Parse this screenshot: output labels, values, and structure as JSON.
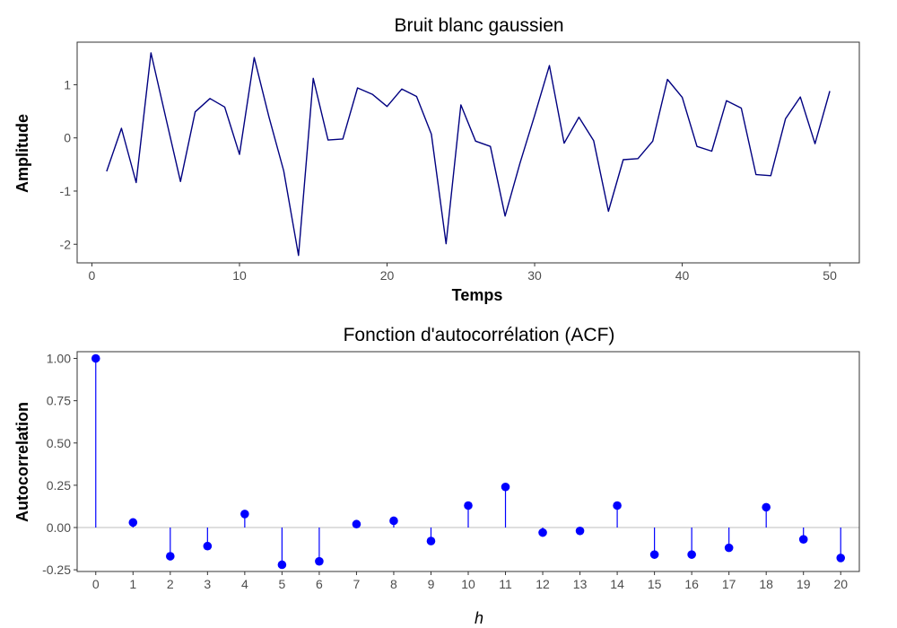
{
  "chart_data": [
    {
      "type": "line",
      "title": "Bruit blanc gaussien",
      "xlabel": "Temps",
      "ylabel": "Amplitude",
      "xlim": [
        -1,
        52
      ],
      "ylim": [
        -2.35,
        1.8
      ],
      "xticks": [
        0,
        10,
        20,
        30,
        40,
        50
      ],
      "xtick_labels": [
        "0",
        "10",
        "20",
        "30",
        "40",
        "50"
      ],
      "yticks": [
        -2,
        -1,
        0,
        1
      ],
      "ytick_labels": [
        "-2",
        "-1",
        "0",
        "1"
      ],
      "grid": false,
      "line_color": "#000080",
      "x": [
        1,
        2,
        3,
        4,
        5,
        6,
        7,
        8,
        9,
        10,
        11,
        12,
        13,
        14,
        15,
        16,
        17,
        18,
        19,
        20,
        21,
        22,
        23,
        24,
        25,
        26,
        27,
        28,
        29,
        30,
        31,
        32,
        33,
        34,
        35,
        36,
        37,
        38,
        39,
        40,
        41,
        42,
        43,
        44,
        45,
        46,
        47,
        48,
        49,
        50
      ],
      "y": [
        -0.63,
        0.18,
        -0.84,
        1.6,
        0.39,
        -0.82,
        0.49,
        0.74,
        0.58,
        -0.31,
        1.51,
        0.39,
        -0.62,
        -2.21,
        1.12,
        -0.04,
        -0.02,
        0.94,
        0.82,
        0.59,
        0.92,
        0.78,
        0.07,
        -1.99,
        0.62,
        -0.06,
        -0.16,
        -1.47,
        -0.48,
        0.42,
        1.36,
        -0.1,
        0.39,
        -0.05,
        -1.38,
        -0.41,
        -0.39,
        -0.06,
        1.1,
        0.76,
        -0.16,
        -0.25,
        0.7,
        0.56,
        -0.69,
        -0.71,
        0.36,
        0.77,
        -0.11,
        0.88
      ]
    },
    {
      "type": "scatter",
      "subtype": "lollipop",
      "title": "Fonction d'autocorrélation (ACF)",
      "xlabel": "h",
      "ylabel": "Autocorrelation",
      "xlim": [
        -0.5,
        20.5
      ],
      "ylim": [
        -0.26,
        1.04
      ],
      "xticks": [
        0,
        1,
        2,
        3,
        4,
        5,
        6,
        7,
        8,
        9,
        10,
        11,
        12,
        13,
        14,
        15,
        16,
        17,
        18,
        19,
        20
      ],
      "xtick_labels": [
        "0",
        "1",
        "2",
        "3",
        "4",
        "5",
        "6",
        "7",
        "8",
        "9",
        "10",
        "11",
        "12",
        "13",
        "14",
        "15",
        "16",
        "17",
        "18",
        "19",
        "20"
      ],
      "yticks": [
        -0.25,
        0,
        0.25,
        0.5,
        0.75,
        1
      ],
      "ytick_labels": [
        "-0.25",
        "0.00",
        "0.25",
        "0.50",
        "0.75",
        "1.00"
      ],
      "grid": false,
      "point_color": "#0000ff",
      "zero_line_color": "#bebebe",
      "x": [
        0,
        1,
        2,
        3,
        4,
        5,
        6,
        7,
        8,
        9,
        10,
        11,
        12,
        13,
        14,
        15,
        16,
        17,
        18,
        19,
        20
      ],
      "y": [
        1.0,
        0.03,
        -0.17,
        -0.11,
        0.08,
        -0.22,
        -0.2,
        0.02,
        0.04,
        -0.08,
        0.13,
        0.24,
        -0.03,
        -0.02,
        0.13,
        -0.16,
        -0.16,
        -0.12,
        0.12,
        -0.07,
        -0.18
      ]
    }
  ]
}
